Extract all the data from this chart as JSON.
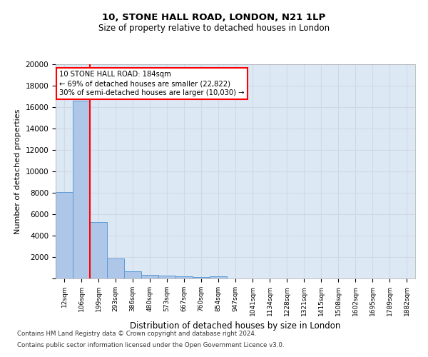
{
  "title1": "10, STONE HALL ROAD, LONDON, N21 1LP",
  "title2": "Size of property relative to detached houses in London",
  "xlabel": "Distribution of detached houses by size in London",
  "ylabel": "Number of detached properties",
  "bin_labels": [
    "12sqm",
    "106sqm",
    "199sqm",
    "293sqm",
    "386sqm",
    "480sqm",
    "573sqm",
    "667sqm",
    "760sqm",
    "854sqm",
    "947sqm",
    "1041sqm",
    "1134sqm",
    "1228sqm",
    "1321sqm",
    "1415sqm",
    "1508sqm",
    "1602sqm",
    "1695sqm",
    "1789sqm",
    "1882sqm"
  ],
  "bar_heights": [
    8100,
    16600,
    5300,
    1850,
    700,
    350,
    275,
    175,
    150,
    200,
    0,
    0,
    0,
    0,
    0,
    0,
    0,
    0,
    0,
    0,
    0
  ],
  "bar_color": "#aec6e8",
  "bar_edge_color": "#5b9bd5",
  "vline_color": "red",
  "annotation_text": "10 STONE HALL ROAD: 184sqm\n← 69% of detached houses are smaller (22,822)\n30% of semi-detached houses are larger (10,030) →",
  "ylim": [
    0,
    20000
  ],
  "yticks": [
    0,
    2000,
    4000,
    6000,
    8000,
    10000,
    12000,
    14000,
    16000,
    18000,
    20000
  ],
  "grid_color": "#d0d8e8",
  "background_color": "#dde8f5",
  "footer1": "Contains HM Land Registry data © Crown copyright and database right 2024.",
  "footer2": "Contains public sector information licensed under the Open Government Licence v3.0."
}
